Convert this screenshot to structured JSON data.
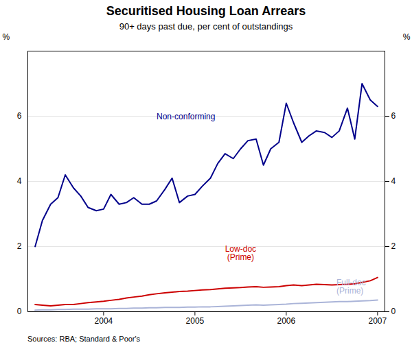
{
  "chart_data": {
    "type": "line",
    "title": "Securitised Housing Loan Arrears",
    "subtitle": "90+ days past due, per cent of outstandings",
    "source": "Sources: RBA; Standard & Poor's",
    "ylabel": "%",
    "y2label": "%",
    "xlim": [
      2003.17,
      2007.08
    ],
    "xticks": [
      2004,
      2005,
      2006,
      2007
    ],
    "ylim": [
      0,
      8
    ],
    "yticks": [
      0,
      2,
      4,
      6
    ],
    "y2lim": [
      0,
      8
    ],
    "y2ticks": [
      0,
      2,
      4,
      6
    ],
    "grid": true,
    "x": [
      2003.25,
      2003.33,
      2003.42,
      2003.5,
      2003.58,
      2003.67,
      2003.75,
      2003.83,
      2003.92,
      2004.0,
      2004.08,
      2004.17,
      2004.25,
      2004.33,
      2004.42,
      2004.5,
      2004.58,
      2004.67,
      2004.75,
      2004.83,
      2004.92,
      2005.0,
      2005.08,
      2005.17,
      2005.25,
      2005.33,
      2005.42,
      2005.5,
      2005.58,
      2005.67,
      2005.75,
      2005.83,
      2005.92,
      2006.0,
      2006.08,
      2006.17,
      2006.25,
      2006.33,
      2006.42,
      2006.5,
      2006.58,
      2006.67,
      2006.75,
      2006.83,
      2006.92,
      2007.0
    ],
    "series": [
      {
        "name": "Non-conforming",
        "color": "#00008B",
        "values": [
          2.0,
          2.8,
          3.3,
          3.5,
          4.2,
          3.8,
          3.55,
          3.2,
          3.1,
          3.15,
          3.6,
          3.3,
          3.35,
          3.5,
          3.3,
          3.3,
          3.4,
          3.75,
          4.1,
          3.35,
          3.55,
          3.6,
          3.85,
          4.1,
          4.55,
          4.85,
          4.7,
          5.0,
          5.25,
          5.3,
          4.5,
          5.0,
          5.2,
          6.4,
          5.8,
          5.2,
          5.4,
          5.55,
          5.5,
          5.35,
          5.55,
          6.25,
          5.3,
          7.0,
          6.5,
          6.3
        ]
      },
      {
        "name": "Low-doc\n(Prime)",
        "color": "#cc0000",
        "values": [
          0.22,
          0.2,
          0.18,
          0.2,
          0.22,
          0.22,
          0.25,
          0.28,
          0.3,
          0.32,
          0.35,
          0.38,
          0.42,
          0.45,
          0.48,
          0.52,
          0.55,
          0.58,
          0.6,
          0.62,
          0.63,
          0.65,
          0.67,
          0.68,
          0.7,
          0.72,
          0.73,
          0.74,
          0.76,
          0.77,
          0.75,
          0.76,
          0.77,
          0.8,
          0.82,
          0.8,
          0.82,
          0.84,
          0.83,
          0.82,
          0.83,
          0.84,
          0.86,
          0.9,
          0.95,
          1.05
        ]
      },
      {
        "name": "Full-doc\n(Prime)",
        "color": "#aab4d8",
        "values": [
          0.05,
          0.06,
          0.06,
          0.07,
          0.07,
          0.08,
          0.08,
          0.08,
          0.09,
          0.09,
          0.09,
          0.1,
          0.1,
          0.11,
          0.11,
          0.12,
          0.12,
          0.13,
          0.13,
          0.13,
          0.14,
          0.14,
          0.15,
          0.15,
          0.16,
          0.17,
          0.18,
          0.19,
          0.2,
          0.21,
          0.2,
          0.21,
          0.22,
          0.23,
          0.25,
          0.26,
          0.27,
          0.28,
          0.29,
          0.3,
          0.31,
          0.31,
          0.32,
          0.33,
          0.34,
          0.36
        ]
      }
    ],
    "annotations": [
      {
        "text": "Non-conforming",
        "x": 2004.58,
        "y": 5.9,
        "color": "#00008B",
        "anchor": "start"
      },
      {
        "text": "Low-doc\n(Prime)",
        "x": 2005.5,
        "y": 1.58,
        "color": "#cc0000",
        "anchor": "middle"
      },
      {
        "text": "Full-doc\n(Prime)",
        "x": 2006.55,
        "y": 0.55,
        "color": "#aab4d8",
        "anchor": "start"
      }
    ]
  }
}
